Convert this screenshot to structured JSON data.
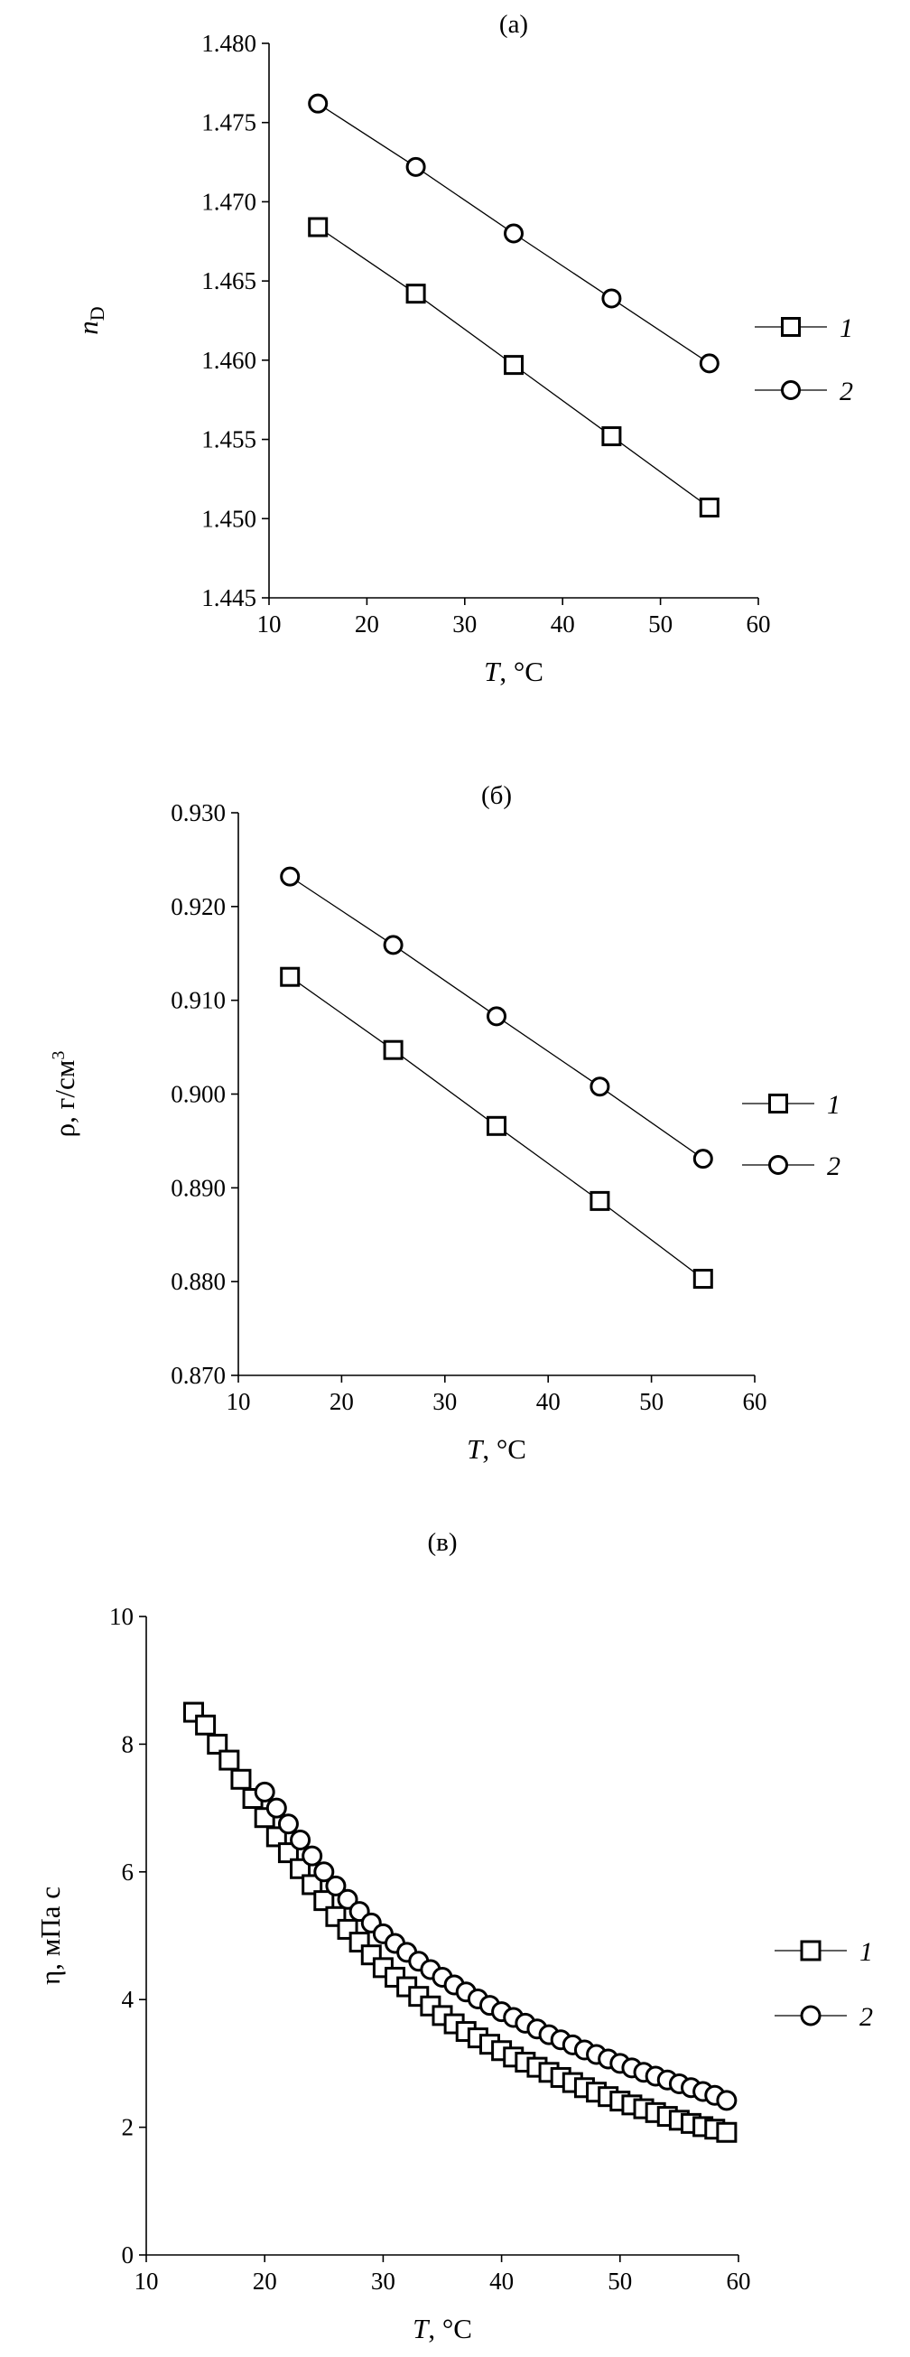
{
  "chart_data": [
    {
      "type": "line",
      "title": "(а)",
      "xlabel_italic": "T",
      "xlabel_rest": ", °C",
      "ylabel_italic": "n",
      "ylabel_sub": "D",
      "xlim": [
        10,
        60
      ],
      "ylim": [
        1.445,
        1.48
      ],
      "x_ticks": [
        "10",
        "20",
        "30",
        "40",
        "50",
        "60"
      ],
      "y_ticks": [
        "1.445",
        "1.450",
        "1.455",
        "1.460",
        "1.465",
        "1.470",
        "1.475",
        "1.480"
      ],
      "legend_position": "right",
      "series": [
        {
          "name": "1",
          "marker": "square",
          "x": [
            15,
            25,
            35,
            45,
            55
          ],
          "values": [
            1.4684,
            1.4642,
            1.4597,
            1.4552,
            1.4507
          ]
        },
        {
          "name": "2",
          "marker": "circle",
          "x": [
            15,
            25,
            35,
            45,
            55
          ],
          "values": [
            1.4762,
            1.4722,
            1.468,
            1.4639,
            1.4598
          ]
        }
      ]
    },
    {
      "type": "line",
      "title": "(б)",
      "xlabel_italic": "T",
      "xlabel_rest": ", °C",
      "ylabel_text": "ρ, г/см",
      "ylabel_sup": "3",
      "xlim": [
        10,
        60
      ],
      "ylim": [
        0.87,
        0.93
      ],
      "x_ticks": [
        "10",
        "20",
        "30",
        "40",
        "50",
        "60"
      ],
      "y_ticks": [
        "0.870",
        "0.880",
        "0.890",
        "0.900",
        "0.910",
        "0.920",
        "0.930"
      ],
      "legend_position": "right",
      "series": [
        {
          "name": "1",
          "marker": "square",
          "x": [
            15,
            25,
            35,
            45,
            55
          ],
          "values": [
            0.9125,
            0.9047,
            0.8966,
            0.8886,
            0.8803
          ]
        },
        {
          "name": "2",
          "marker": "circle",
          "x": [
            15,
            25,
            35,
            45,
            55
          ],
          "values": [
            0.9232,
            0.9159,
            0.9083,
            0.9008,
            0.8931
          ]
        }
      ]
    },
    {
      "type": "scatter",
      "title": "(в)",
      "xlabel_italic": "T",
      "xlabel_rest": ", °C",
      "ylabel_text": "η, мПа с",
      "xlim": [
        10,
        60
      ],
      "ylim": [
        0,
        10
      ],
      "x_ticks": [
        "10",
        "20",
        "30",
        "40",
        "50",
        "60"
      ],
      "y_ticks": [
        "0",
        "2",
        "4",
        "6",
        "8",
        "10"
      ],
      "legend_position": "right",
      "series": [
        {
          "name": "1",
          "marker": "square",
          "x": [
            14,
            15,
            16,
            17,
            18,
            19,
            20,
            21,
            22,
            23,
            24,
            25,
            26,
            27,
            28,
            29,
            30,
            31,
            32,
            33,
            34,
            35,
            36,
            37,
            38,
            39,
            40,
            41,
            42,
            43,
            44,
            45,
            46,
            47,
            48,
            49,
            50,
            51,
            52,
            53,
            54,
            55,
            56,
            57,
            58,
            59
          ],
          "values": [
            8.5,
            8.3,
            8.0,
            7.75,
            7.45,
            7.15,
            6.85,
            6.55,
            6.3,
            6.05,
            5.8,
            5.55,
            5.3,
            5.1,
            4.9,
            4.7,
            4.5,
            4.35,
            4.2,
            4.05,
            3.9,
            3.75,
            3.62,
            3.5,
            3.4,
            3.3,
            3.2,
            3.1,
            3.02,
            2.94,
            2.86,
            2.78,
            2.7,
            2.62,
            2.55,
            2.48,
            2.41,
            2.35,
            2.29,
            2.23,
            2.17,
            2.11,
            2.06,
            2.01,
            1.97,
            1.92
          ]
        },
        {
          "name": "2",
          "marker": "circle",
          "x": [
            20,
            21,
            22,
            23,
            24,
            25,
            26,
            27,
            28,
            29,
            30,
            31,
            32,
            33,
            34,
            35,
            36,
            37,
            38,
            39,
            40,
            41,
            42,
            43,
            44,
            45,
            46,
            47,
            48,
            49,
            50,
            51,
            52,
            53,
            54,
            55,
            56,
            57,
            58,
            59
          ],
          "values": [
            7.25,
            7.0,
            6.75,
            6.5,
            6.25,
            6.0,
            5.78,
            5.57,
            5.38,
            5.2,
            5.03,
            4.88,
            4.74,
            4.6,
            4.47,
            4.35,
            4.23,
            4.12,
            4.01,
            3.91,
            3.81,
            3.72,
            3.63,
            3.54,
            3.45,
            3.37,
            3.29,
            3.21,
            3.14,
            3.07,
            3.0,
            2.93,
            2.86,
            2.8,
            2.74,
            2.68,
            2.62,
            2.56,
            2.5,
            2.42
          ]
        }
      ]
    }
  ]
}
